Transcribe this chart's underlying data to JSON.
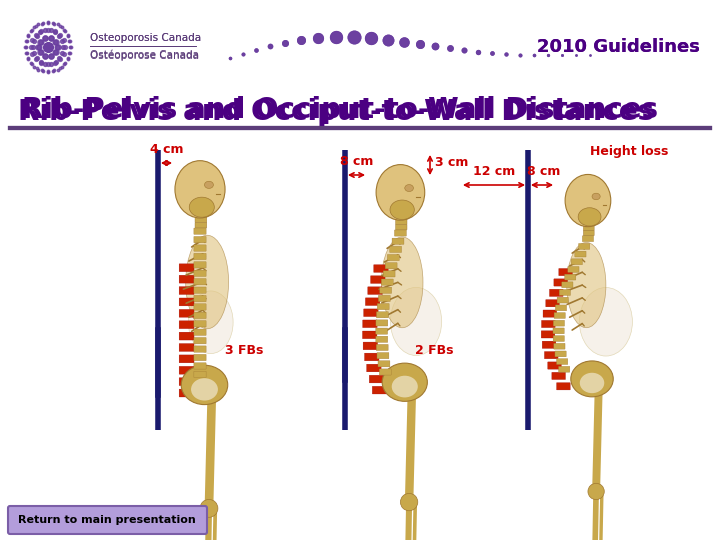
{
  "bg_color": "#ffffff",
  "title": "Rib-Pelvis and Occiput-to-Wall Distances",
  "title_color": "#4b0082",
  "title_fontsize": 20,
  "guideline_text": "2010 Guidelines",
  "guideline_color": "#4b0082",
  "guideline_fontsize": 13,
  "header_line_color": "#5c3d7a",
  "logo_text1": "Osteoporosis Canada",
  "logo_text2": "Ostéoporose Canada",
  "logo_color": "#5c3d7a",
  "annotation_color": "#cc0000",
  "blue_line_color": "#1a1a6e",
  "label_4cm": "4 cm",
  "label_8cm": "8 cm",
  "label_3cm": "3 cm",
  "label_height_loss": "Height loss",
  "label_12cm": "12 cm",
  "label_8cm_right": "8 cm",
  "label_3fbs": "3 FBs",
  "label_2fbs": "2 FBs",
  "btn_text": "Return to main presentation",
  "btn_color": "#b39ddb",
  "btn_border_color": "#7b5ea7",
  "btn_text_color": "#000000",
  "purple_dot_color": "#6b3fa0",
  "bone_color": "#c8a84b",
  "bone_light": "#dfc27d",
  "bone_dark": "#a07830",
  "red_spine_color": "#cc2200",
  "white_belly": "#f5f0e8",
  "dark_navy": "#1a1a6e"
}
